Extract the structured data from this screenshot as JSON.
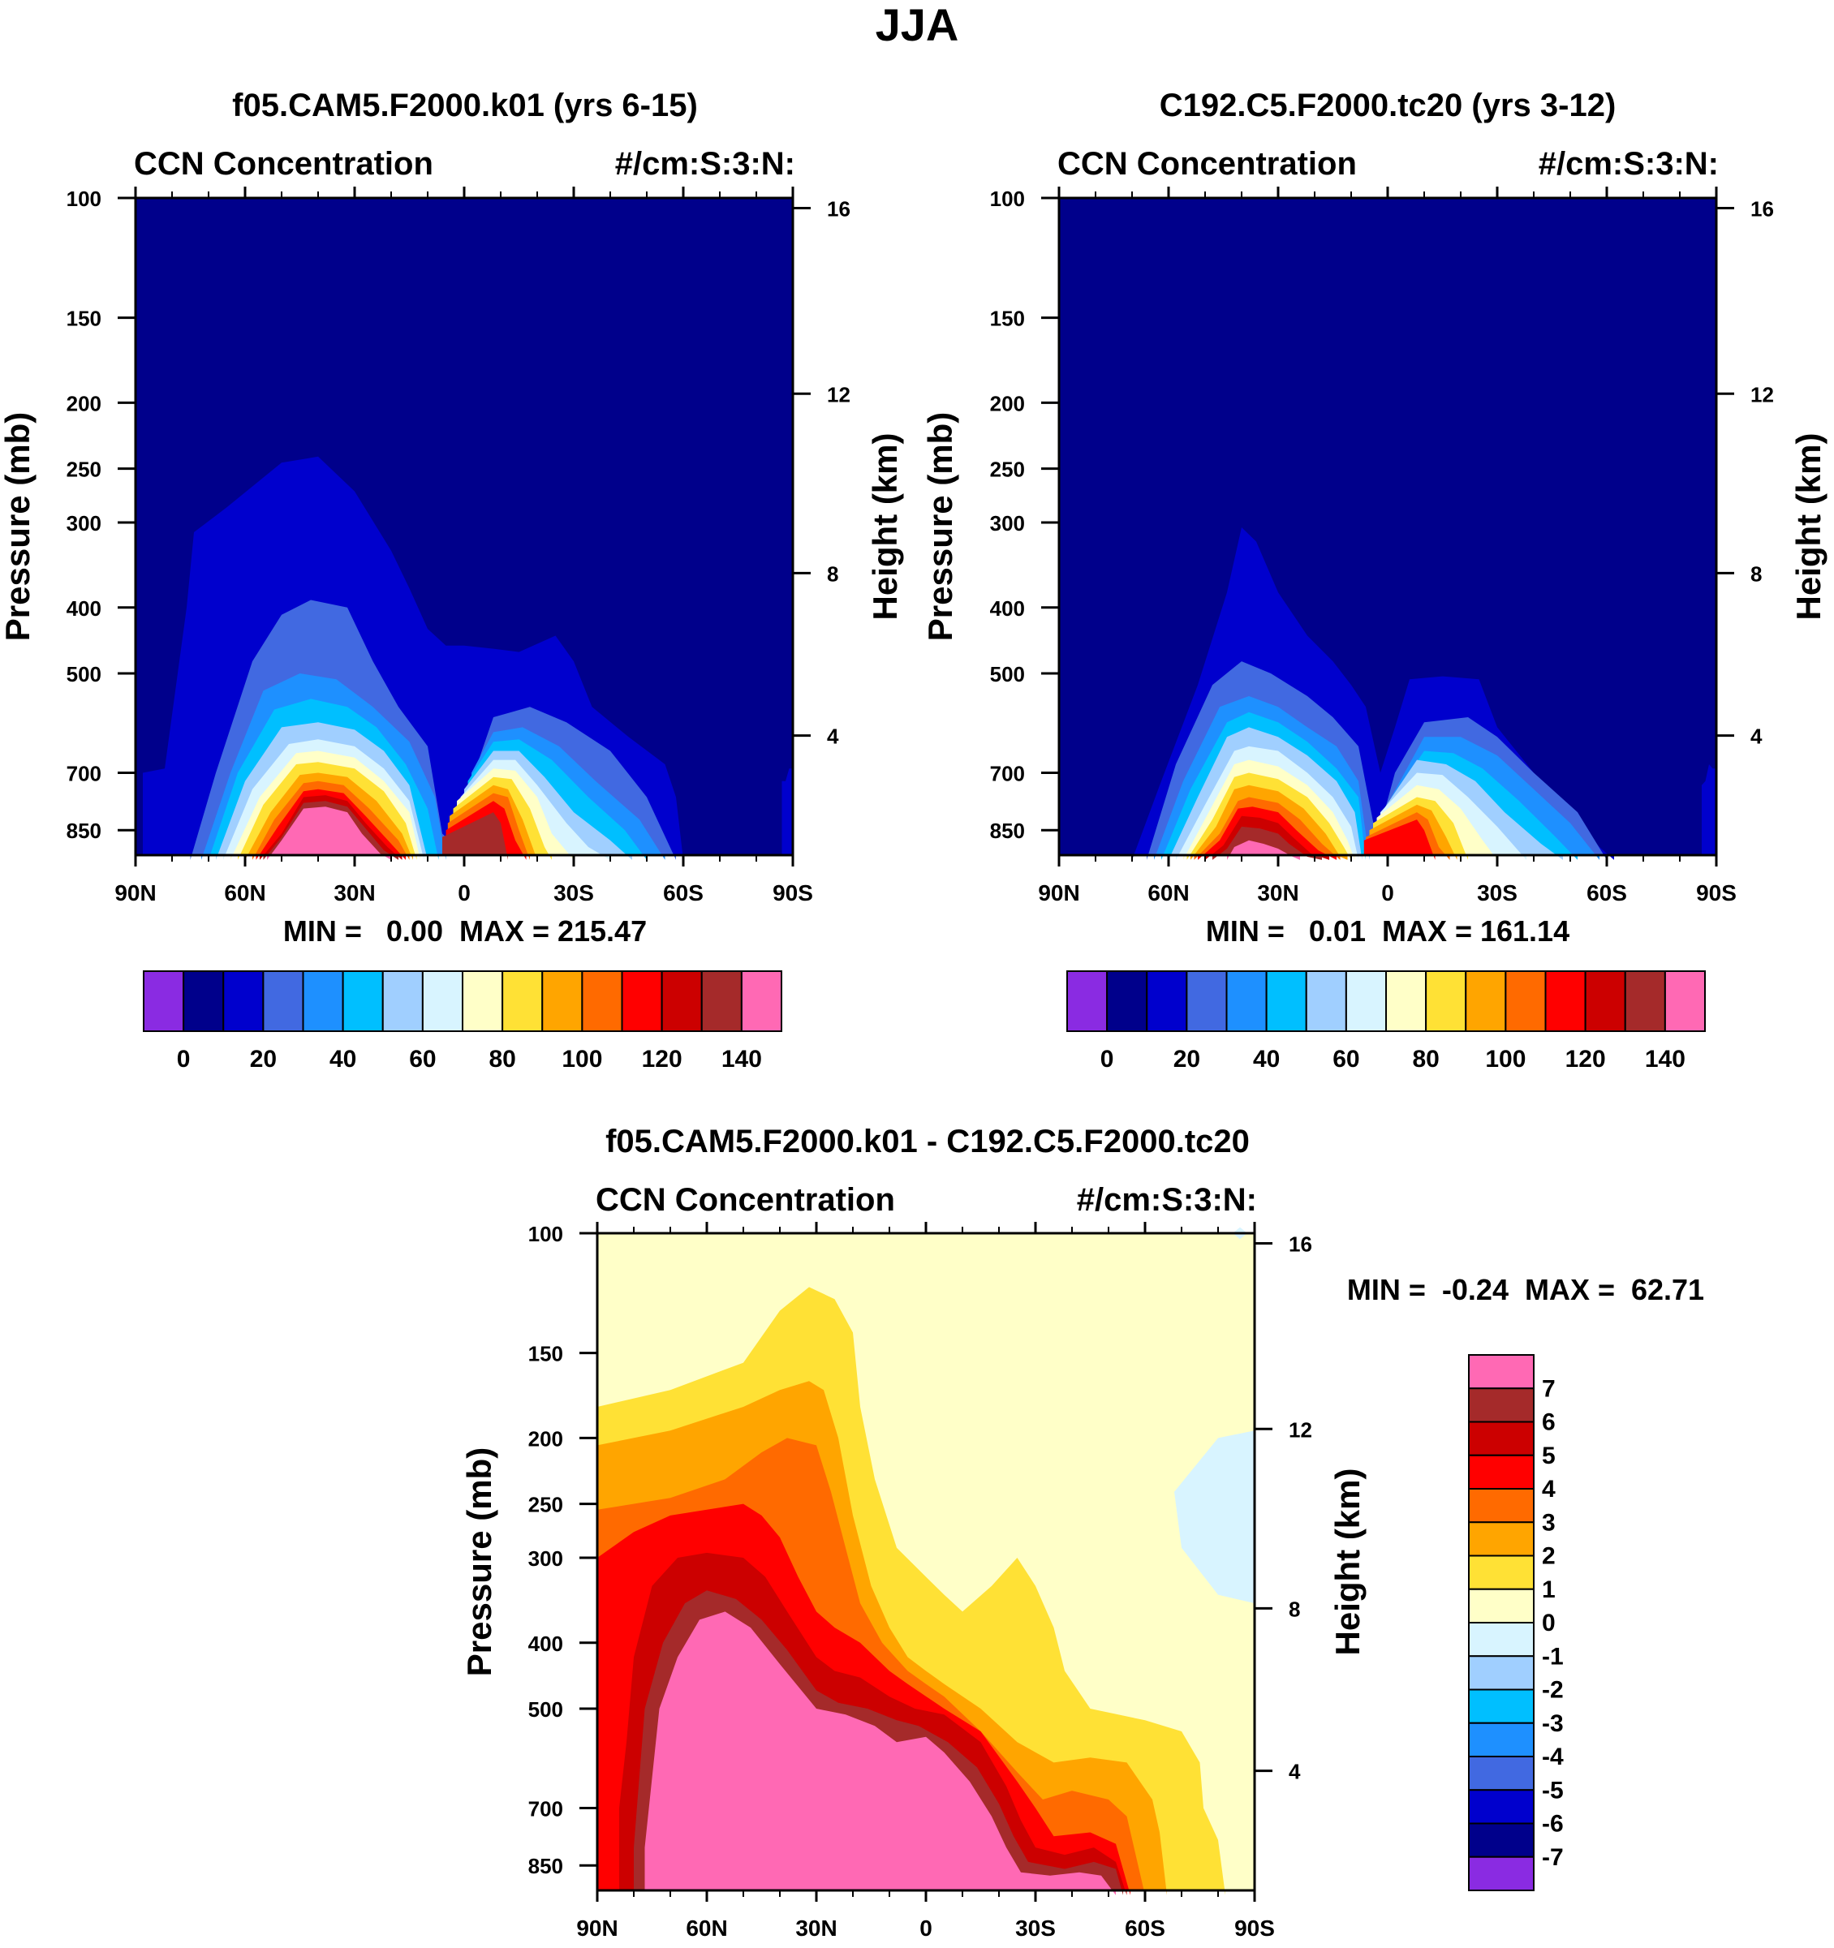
{
  "figure": {
    "title": "JJA"
  },
  "chart_data": [
    {
      "type": "contour",
      "title": "f05.CAM5.F2000.k01 (yrs 6-15)",
      "left_label": "CCN Concentration",
      "right_label": "#/cm:S:3:N:",
      "ylabel": "Pressure (mb)",
      "ylabel_right": "Height (km)",
      "x_ticks": [
        "90N",
        "60N",
        "30N",
        "0",
        "30S",
        "60S",
        "90S"
      ],
      "y_ticks": [
        "100",
        "150",
        "200",
        "250",
        "300",
        "400",
        "500",
        "700",
        "850"
      ],
      "height_ticks": [
        "16",
        "12",
        "8",
        "4"
      ],
      "min_max_label": "MIN =   0.00  MAX = 215.47",
      "min": 0.0,
      "max": 215.47,
      "levels": [
        0,
        10,
        20,
        30,
        40,
        50,
        60,
        70,
        80,
        90,
        100,
        110,
        120,
        130,
        140
      ],
      "colorbar_labels": [
        "0",
        "20",
        "40",
        "60",
        "80",
        "100",
        "120",
        "140"
      ],
      "regions": [
        {
          "level": 0,
          "peaks": [
            {
              "lat": 45,
              "p": 240
            },
            {
              "lat": -10,
              "p": 460
            },
            {
              "lat": -25,
              "p": 440
            }
          ]
        },
        {
          "level": 10,
          "peaks": [
            {
              "lat": 42,
              "p": 385
            },
            {
              "lat": -10,
              "p": 560
            }
          ]
        },
        {
          "level": 30,
          "peaks": [
            {
              "lat": 40,
              "p": 480
            },
            {
              "lat": -10,
              "p": 590
            }
          ]
        },
        {
          "level": 60,
          "peaks": [
            {
              "lat": 40,
              "p": 610
            },
            {
              "lat": -10,
              "p": 660
            }
          ]
        },
        {
          "level": 100,
          "peaks": [
            {
              "lat": 40,
              "p": 700
            },
            {
              "lat": -10,
              "p": 740
            }
          ]
        },
        {
          "level": 140,
          "peaks": [
            {
              "lat": 40,
              "p": 740
            }
          ]
        }
      ]
    },
    {
      "type": "contour",
      "title": "C192.C5.F2000.tc20 (yrs 3-12)",
      "left_label": "CCN Concentration",
      "right_label": "#/cm:S:3:N:",
      "ylabel": "Pressure (mb)",
      "ylabel_right": "Height (km)",
      "x_ticks": [
        "90N",
        "60N",
        "30N",
        "0",
        "30S",
        "60S",
        "90S"
      ],
      "y_ticks": [
        "100",
        "150",
        "200",
        "250",
        "300",
        "400",
        "500",
        "700",
        "850"
      ],
      "height_ticks": [
        "16",
        "12",
        "8",
        "4"
      ],
      "min_max_label": "MIN =   0.01  MAX = 161.14",
      "min": 0.01,
      "max": 161.14,
      "levels": [
        0,
        10,
        20,
        30,
        40,
        50,
        60,
        70,
        80,
        90,
        100,
        110,
        120,
        130,
        140
      ],
      "colorbar_labels": [
        "0",
        "20",
        "40",
        "60",
        "80",
        "100",
        "120",
        "140"
      ],
      "regions": [
        {
          "level": 0,
          "peaks": [
            {
              "lat": 40,
              "p": 305
            },
            {
              "lat": -10,
              "p": 505
            }
          ]
        },
        {
          "level": 10,
          "peaks": [
            {
              "lat": 40,
              "p": 480
            },
            {
              "lat": -10,
              "p": 580
            }
          ]
        },
        {
          "level": 30,
          "peaks": [
            {
              "lat": 40,
              "p": 560
            },
            {
              "lat": -10,
              "p": 620
            }
          ]
        },
        {
          "level": 60,
          "peaks": [
            {
              "lat": 40,
              "p": 680
            },
            {
              "lat": -10,
              "p": 700
            }
          ]
        },
        {
          "level": 100,
          "peaks": [
            {
              "lat": 40,
              "p": 780
            },
            {
              "lat": -10,
              "p": 780
            }
          ]
        },
        {
          "level": 140,
          "peaks": [
            {
              "lat": 35,
              "p": 860
            }
          ]
        }
      ]
    },
    {
      "type": "contour",
      "title": "f05.CAM5.F2000.k01 - C192.C5.F2000.tc20",
      "left_label": "CCN Concentration",
      "right_label": "#/cm:S:3:N:",
      "ylabel": "Pressure (mb)",
      "ylabel_right": "Height (km)",
      "x_ticks": [
        "90N",
        "60N",
        "30N",
        "0",
        "30S",
        "60S",
        "90S"
      ],
      "y_ticks": [
        "100",
        "150",
        "200",
        "250",
        "300",
        "400",
        "500",
        "700",
        "850"
      ],
      "height_ticks": [
        "16",
        "12",
        "8",
        "4"
      ],
      "min_max_label": "MIN =  -0.24  MAX =  62.71",
      "min": -0.24,
      "max": 62.71,
      "levels": [
        -7,
        -6,
        -5,
        -4,
        -3,
        -2,
        -1,
        0,
        1,
        2,
        3,
        4,
        5,
        6,
        7
      ],
      "colorbar_labels": [
        "7",
        "6",
        "5",
        "4",
        "3",
        "2",
        "1",
        "0",
        "-1",
        "-2",
        "-3",
        "-4",
        "-5",
        "-6",
        "-7"
      ]
    }
  ],
  "colors": {
    "palette": [
      "#8a2be2",
      "#00008b",
      "#0000cd",
      "#4169e1",
      "#1e90ff",
      "#00bfff",
      "#a0cfff",
      "#d8f4ff",
      "#ffffc8",
      "#ffe135",
      "#ffa500",
      "#ff6a00",
      "#ff0000",
      "#cc0000",
      "#a52a2a",
      "#ff69b4"
    ],
    "background_model": "#00008b",
    "background_diff": "#ffffc8"
  }
}
